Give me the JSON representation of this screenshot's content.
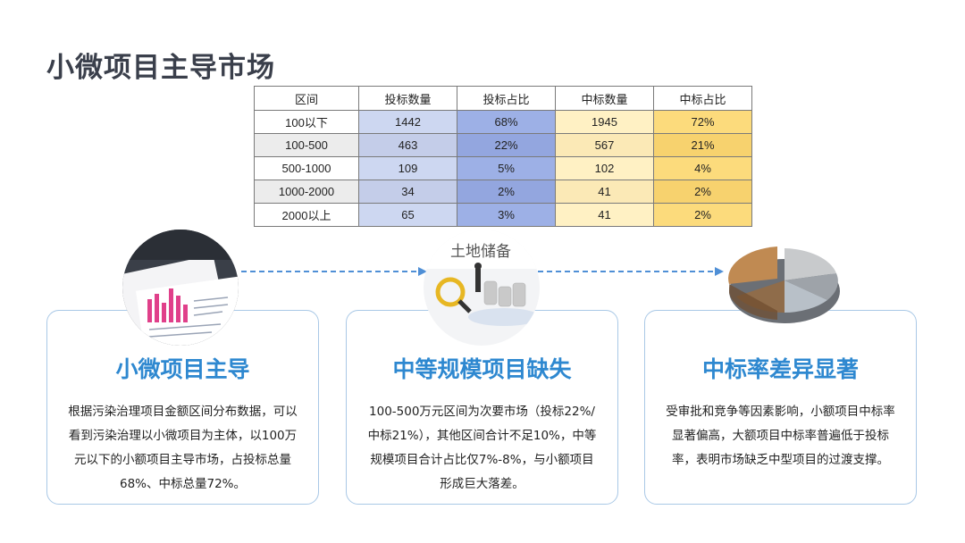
{
  "page": {
    "title": "小微项目主导市场"
  },
  "table": {
    "headers": [
      "区间",
      "投标数量",
      "投标占比",
      "中标数量",
      "中标占比"
    ],
    "rows": [
      [
        "100以下",
        "1442",
        "68%",
        "1945",
        "72%"
      ],
      [
        "100-500",
        "463",
        "22%",
        "567",
        "21%"
      ],
      [
        "500-1000",
        "109",
        "5%",
        "102",
        "4%"
      ],
      [
        "1000-2000",
        "34",
        "2%",
        "41",
        "2%"
      ],
      [
        "2000以上",
        "65",
        "3%",
        "41",
        "2%"
      ]
    ]
  },
  "illustrations": {
    "middle_sign_text": "土地储备"
  },
  "cards": [
    {
      "title": "小微项目主导",
      "text": "根据污染治理项目金额区间分布数据，可以看到污染治理以小微项目为主体，以100万元以下的小额项目主导市场，占投标总量68%、中标总量72%。"
    },
    {
      "title": "中等规模项目缺失",
      "text": "100-500万元区间为次要市场（投标22%/中标21%），其他区间合计不足10%，中等规模项目合计占比仅7%-8%，与小额项目形成巨大落差。"
    },
    {
      "title": "中标率差异显著",
      "text": "受审批和竞争等因素影响，小额项目中标率显著偏高，大额项目中标率普遍低于投标率，表明市场缺乏中型项目的过渡支撑。"
    }
  ],
  "colors": {
    "title": "#3a3f4b",
    "card_title": "#2e88d0",
    "card_border": "#a9c8e6",
    "bid_count_bg": "#cdd7f1",
    "bid_share_bg": "#9db0e6",
    "win_count_bg": "#fff1c4",
    "win_share_bg": "#fcdb7c",
    "arrow": "#4f8fd6"
  }
}
